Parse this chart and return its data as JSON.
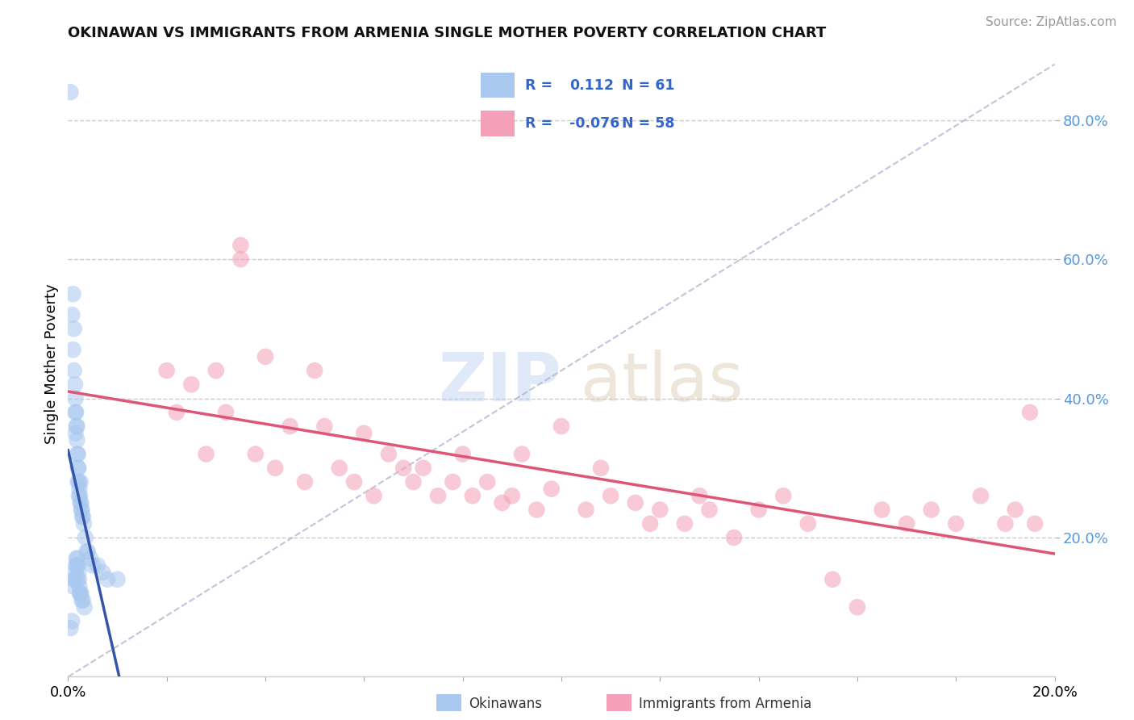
{
  "title": "OKINAWAN VS IMMIGRANTS FROM ARMENIA SINGLE MOTHER POVERTY CORRELATION CHART",
  "source": "Source: ZipAtlas.com",
  "xlim": [
    0.0,
    0.2
  ],
  "ylim": [
    0.0,
    0.9
  ],
  "ylabel": "Single Mother Poverty",
  "legend_label1": "Okinawans",
  "legend_label2": "Immigrants from Armenia",
  "R1": 0.112,
  "N1": 61,
  "R2": -0.076,
  "N2": 58,
  "color_blue": "#a8c8f0",
  "color_pink": "#f4a0b8",
  "color_blue_line": "#3355aa",
  "color_pink_line": "#dd5577",
  "okinawan_x": [
    0.0005,
    0.0005,
    0.0008,
    0.0008,
    0.001,
    0.001,
    0.001,
    0.0012,
    0.0012,
    0.0014,
    0.0014,
    0.0015,
    0.0015,
    0.0015,
    0.0016,
    0.0016,
    0.0017,
    0.0017,
    0.0018,
    0.0018,
    0.0019,
    0.0019,
    0.0019,
    0.002,
    0.002,
    0.002,
    0.0021,
    0.0021,
    0.0022,
    0.0022,
    0.0022,
    0.0023,
    0.0023,
    0.0024,
    0.0024,
    0.0025,
    0.0025,
    0.0026,
    0.0026,
    0.0027,
    0.0028,
    0.0028,
    0.0029,
    0.003,
    0.003,
    0.0032,
    0.0033,
    0.0035,
    0.0038,
    0.004,
    0.0045,
    0.005,
    0.006,
    0.007,
    0.008,
    0.01,
    0.0012,
    0.0015,
    0.0018,
    0.002,
    0.0025
  ],
  "okinawan_y": [
    0.84,
    0.07,
    0.52,
    0.08,
    0.55,
    0.47,
    0.13,
    0.5,
    0.14,
    0.42,
    0.14,
    0.38,
    0.35,
    0.15,
    0.38,
    0.16,
    0.36,
    0.17,
    0.34,
    0.16,
    0.32,
    0.17,
    0.14,
    0.3,
    0.28,
    0.16,
    0.3,
    0.15,
    0.28,
    0.26,
    0.14,
    0.27,
    0.13,
    0.26,
    0.12,
    0.25,
    0.12,
    0.25,
    0.12,
    0.24,
    0.24,
    0.11,
    0.23,
    0.23,
    0.11,
    0.22,
    0.1,
    0.2,
    0.18,
    0.18,
    0.17,
    0.16,
    0.16,
    0.15,
    0.14,
    0.14,
    0.44,
    0.4,
    0.36,
    0.32,
    0.28
  ],
  "armenia_x": [
    0.02,
    0.022,
    0.025,
    0.028,
    0.03,
    0.032,
    0.035,
    0.035,
    0.038,
    0.04,
    0.042,
    0.045,
    0.048,
    0.05,
    0.052,
    0.055,
    0.058,
    0.06,
    0.062,
    0.065,
    0.068,
    0.07,
    0.072,
    0.075,
    0.078,
    0.08,
    0.082,
    0.085,
    0.088,
    0.09,
    0.092,
    0.095,
    0.098,
    0.1,
    0.105,
    0.108,
    0.11,
    0.115,
    0.118,
    0.12,
    0.125,
    0.128,
    0.13,
    0.135,
    0.14,
    0.145,
    0.15,
    0.155,
    0.16,
    0.165,
    0.17,
    0.175,
    0.18,
    0.185,
    0.19,
    0.192,
    0.195,
    0.196
  ],
  "armenia_y": [
    0.44,
    0.38,
    0.42,
    0.32,
    0.44,
    0.38,
    0.62,
    0.6,
    0.32,
    0.46,
    0.3,
    0.36,
    0.28,
    0.44,
    0.36,
    0.3,
    0.28,
    0.35,
    0.26,
    0.32,
    0.3,
    0.28,
    0.3,
    0.26,
    0.28,
    0.32,
    0.26,
    0.28,
    0.25,
    0.26,
    0.32,
    0.24,
    0.27,
    0.36,
    0.24,
    0.3,
    0.26,
    0.25,
    0.22,
    0.24,
    0.22,
    0.26,
    0.24,
    0.2,
    0.24,
    0.26,
    0.22,
    0.14,
    0.1,
    0.24,
    0.22,
    0.24,
    0.22,
    0.26,
    0.22,
    0.24,
    0.38,
    0.22
  ]
}
